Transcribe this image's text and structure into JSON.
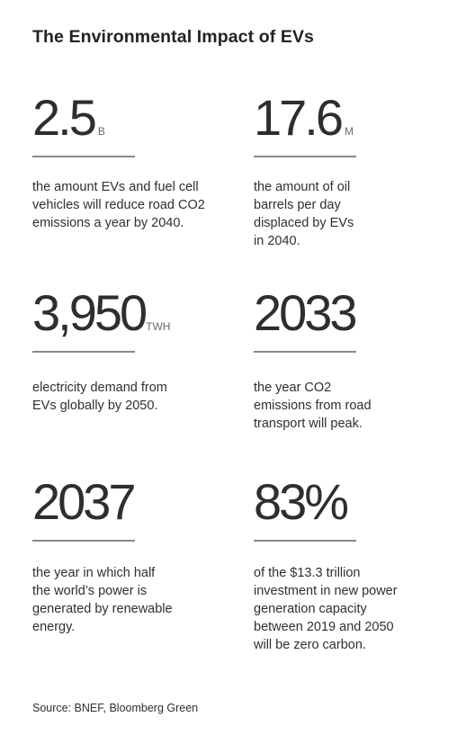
{
  "title": "The Environmental Impact of EVs",
  "stats": [
    {
      "value": "2.5",
      "unit": "B",
      "description": "the amount EVs and fuel cell vehicles will reduce road CO2 emissions a year by 2040."
    },
    {
      "value": "17.6",
      "unit": "M",
      "description": "the amount of oil barrels per day displaced by EVs in 2040."
    },
    {
      "value": "3,950",
      "unit": "TWH",
      "description": "electricity demand from EVs globally by 2050."
    },
    {
      "value": "2033",
      "unit": "",
      "description": "the year CO2 emissions from road transport will peak."
    },
    {
      "value": "2037",
      "unit": "",
      "description": "the year in which half the world’s power is generated by renewable energy."
    },
    {
      "value": "83%",
      "unit": "",
      "description": "of the $13.3 trillion investment in new power generation capacity between 2019 and 2050 will be zero carbon."
    }
  ],
  "source": "Source: BNEF, Bloomberg Green"
}
